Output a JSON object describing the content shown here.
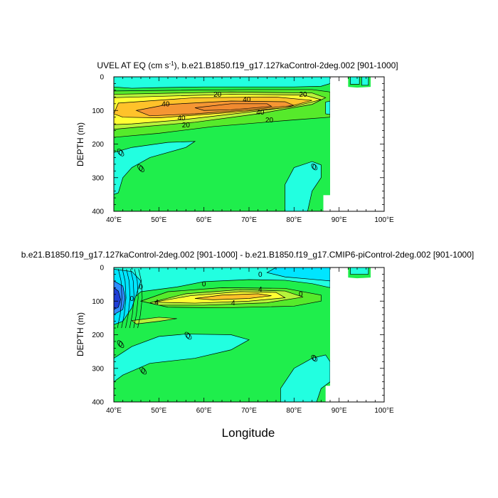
{
  "colors": {
    "background": "#ffffff",
    "mask": "#ffffff",
    "frame": "#000000",
    "neg_strong": "#1f3ed6",
    "neg_mid": "#2f8cff",
    "neg_weak": "#00e5ff",
    "neg_light": "#22ffe0",
    "near_zero": "#1fee4c",
    "pos_light": "#56ea2b",
    "pos_mid": "#b7f23a",
    "pos_yellow": "#ffff33",
    "pos_orange": "#ffc22a",
    "pos_strong": "#f59633"
  },
  "chart_data": [
    {
      "type": "contour",
      "title": "UVEL AT EQ (cm s",
      "title_sup": "-1",
      "title_tail": "), b.e21.B1850.f19_g17.127kaControl-2deg.002 [901-1000]",
      "ylabel": "DEPTH (m)",
      "xlabel": "",
      "xlim": [
        40,
        100
      ],
      "ylim": [
        400,
        0
      ],
      "y_reversed": true,
      "xticks": [
        40,
        50,
        60,
        70,
        80,
        90,
        100
      ],
      "xtick_labels": [
        "40°E",
        "50°E",
        "60°E",
        "70°E",
        "80°E",
        "90°E",
        "100°E"
      ],
      "yticks": [
        0,
        100,
        200,
        300,
        400
      ],
      "ytick_labels": [
        "0",
        "100",
        "200",
        "300",
        "400"
      ],
      "units": "cm s-1",
      "contour_labels": [
        {
          "text": "20",
          "lon": 63,
          "depth": 52
        },
        {
          "text": "40",
          "lon": 69.5,
          "depth": 67
        },
        {
          "text": "20",
          "lon": 82,
          "depth": 52
        },
        {
          "text": "40",
          "lon": 51.5,
          "depth": 80
        },
        {
          "text": "40",
          "lon": 72.5,
          "depth": 105
        },
        {
          "text": "40",
          "lon": 55,
          "depth": 122
        },
        {
          "text": "20",
          "lon": 74.5,
          "depth": 128
        },
        {
          "text": "20",
          "lon": 56,
          "depth": 143
        },
        {
          "text": "0",
          "lon": 41.5,
          "depth": 225
        },
        {
          "text": "0",
          "lon": 46,
          "depth": 272
        },
        {
          "text": "0",
          "lon": 84.5,
          "depth": 268
        }
      ],
      "max_value_region": {
        "lon": 65,
        "depth": 90,
        "approx_max": 50
      }
    },
    {
      "type": "contour",
      "title": "b.e21.B1850.f19_g17.127kaControl-2deg.002 [901-1000] - b.e21.B1850.f19_g17.CMIP6-piControl-2deg.002 [901-1000]",
      "ylabel": "DEPTH (m)",
      "xlabel": "Longitude",
      "xlim": [
        40,
        100
      ],
      "ylim": [
        400,
        0
      ],
      "y_reversed": true,
      "xticks": [
        40,
        50,
        60,
        70,
        80,
        90,
        100
      ],
      "xtick_labels": [
        "40°E",
        "50°E",
        "60°E",
        "70°E",
        "80°E",
        "90°E",
        "100°E"
      ],
      "yticks": [
        0,
        100,
        200,
        300,
        400
      ],
      "ytick_labels": [
        "0",
        "100",
        "200",
        "300",
        "400"
      ],
      "units": "cm s-1",
      "contour_labels": [
        {
          "text": "0",
          "lon": 72.5,
          "depth": 20
        },
        {
          "text": "0",
          "lon": 46,
          "depth": 57
        },
        {
          "text": "0",
          "lon": 60,
          "depth": 49
        },
        {
          "text": "4",
          "lon": 72.5,
          "depth": 65
        },
        {
          "text": "0",
          "lon": 81.5,
          "depth": 78
        },
        {
          "text": "0",
          "lon": 44,
          "depth": 92
        },
        {
          "text": "4",
          "lon": 49.5,
          "depth": 103
        },
        {
          "text": "4",
          "lon": 66.5,
          "depth": 105
        },
        {
          "text": "0",
          "lon": 41.5,
          "depth": 228
        },
        {
          "text": "0",
          "lon": 56.5,
          "depth": 203
        },
        {
          "text": "0",
          "lon": 46.5,
          "depth": 307
        },
        {
          "text": "0",
          "lon": 84.5,
          "depth": 270
        }
      ],
      "max_value_region": {
        "lon": 68,
        "depth": 80,
        "approx_max": 7
      },
      "min_value_region": {
        "lon": 40.5,
        "depth": 95,
        "approx_min": -20
      }
    }
  ]
}
